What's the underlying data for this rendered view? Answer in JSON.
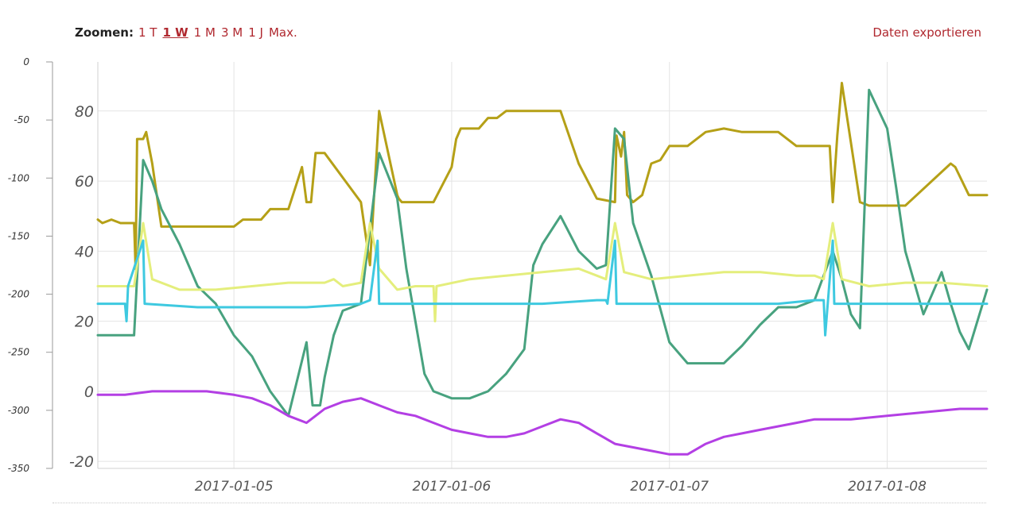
{
  "toolbar": {
    "zoom_label": "Zoomen:",
    "zoom_options": [
      {
        "label": "1 T",
        "active": false
      },
      {
        "label": "1 W",
        "active": true
      },
      {
        "label": "1 M",
        "active": false
      },
      {
        "label": "3 M",
        "active": false
      },
      {
        "label": "1 J",
        "active": false
      },
      {
        "label": "Max.",
        "active": false
      }
    ],
    "export_label": "Daten exportieren"
  },
  "chart_data": {
    "type": "line",
    "grid": "on",
    "legend": "none",
    "x_range": [
      "2017-01-04T09:00",
      "2017-01-08T11:00"
    ],
    "x_ticks": [
      "2017-01-05",
      "2017-01-06",
      "2017-01-07",
      "2017-01-08"
    ],
    "y_axis_left": {
      "ylim": [
        -350,
        0
      ],
      "ticks": [
        0,
        -50,
        -100,
        -150,
        -200,
        -250,
        -300,
        -350
      ]
    },
    "y_axis_right": {
      "ylim": [
        -22,
        94
      ],
      "ticks": [
        80,
        60,
        40,
        20,
        0,
        -20
      ]
    },
    "series": [
      {
        "color": "#b5a017",
        "axis": "right",
        "x": [
          "2017-01-04T09:00",
          "2017-01-04T09:30",
          "2017-01-04T10:30",
          "2017-01-04T11:30",
          "2017-01-04T12:00",
          "2017-01-04T13:00",
          "2017-01-04T13:10",
          "2017-01-04T13:20",
          "2017-01-04T14:00",
          "2017-01-04T14:20",
          "2017-01-04T15:00",
          "2017-01-04T16:00",
          "2017-01-04T20:00",
          "2017-01-04T21:00",
          "2017-01-04T22:00",
          "2017-01-05T00:00",
          "2017-01-05T01:00",
          "2017-01-05T03:00",
          "2017-01-05T04:00",
          "2017-01-05T05:00",
          "2017-01-05T06:00",
          "2017-01-05T07:30",
          "2017-01-05T08:00",
          "2017-01-05T08:30",
          "2017-01-05T09:00",
          "2017-01-05T10:00",
          "2017-01-05T14:00",
          "2017-01-05T15:00",
          "2017-01-05T16:00",
          "2017-01-05T18:00",
          "2017-01-05T18:10",
          "2017-01-05T18:30",
          "2017-01-05T19:00",
          "2017-01-05T19:20",
          "2017-01-05T19:40",
          "2017-01-05T20:00",
          "2017-01-05T21:00",
          "2017-01-05T22:00",
          "2017-01-06T00:00",
          "2017-01-06T00:30",
          "2017-01-06T01:00",
          "2017-01-06T02:00",
          "2017-01-06T03:00",
          "2017-01-06T04:00",
          "2017-01-06T05:00",
          "2017-01-06T06:00",
          "2017-01-06T07:00",
          "2017-01-06T08:00",
          "2017-01-06T09:00",
          "2017-01-06T10:00",
          "2017-01-06T12:00",
          "2017-01-06T14:00",
          "2017-01-06T16:00",
          "2017-01-06T18:00",
          "2017-01-06T18:10",
          "2017-01-06T18:40",
          "2017-01-06T19:00",
          "2017-01-06T19:20",
          "2017-01-06T20:00",
          "2017-01-06T21:00",
          "2017-01-06T22:00",
          "2017-01-06T23:00",
          "2017-01-07T00:00",
          "2017-01-07T01:00",
          "2017-01-07T02:00",
          "2017-01-07T04:00",
          "2017-01-07T06:00",
          "2017-01-07T08:00",
          "2017-01-07T10:00",
          "2017-01-07T12:00",
          "2017-01-07T14:00",
          "2017-01-07T16:00",
          "2017-01-07T17:00",
          "2017-01-07T17:20",
          "2017-01-07T17:40",
          "2017-01-07T18:00",
          "2017-01-07T18:30",
          "2017-01-07T19:00",
          "2017-01-07T21:00",
          "2017-01-07T22:00",
          "2017-01-07T23:00",
          "2017-01-08T00:00",
          "2017-01-08T02:00",
          "2017-01-08T07:00",
          "2017-01-08T07:30",
          "2017-01-08T09:00",
          "2017-01-08T11:00"
        ],
        "values": [
          49,
          48,
          49,
          48,
          48,
          48,
          35,
          72,
          72,
          74,
          65,
          47,
          47,
          47,
          47,
          47,
          49,
          49,
          52,
          52,
          52,
          64,
          54,
          54,
          68,
          68,
          54,
          36,
          80,
          56,
          55,
          54,
          54,
          54,
          54,
          54,
          54,
          54,
          64,
          72,
          75,
          75,
          75,
          78,
          78,
          80,
          80,
          80,
          80,
          80,
          80,
          65,
          55,
          54,
          73,
          67,
          74,
          56,
          54,
          56,
          65,
          66,
          70,
          70,
          70,
          74,
          75,
          74,
          74,
          74,
          70,
          70,
          70,
          70,
          70,
          54,
          73,
          88,
          54,
          53,
          53,
          53,
          53,
          65,
          64,
          56,
          56
        ]
      },
      {
        "color": "#48a27f",
        "axis": "right",
        "x": [
          "2017-01-04T09:00",
          "2017-01-04T13:00",
          "2017-01-04T14:00",
          "2017-01-04T15:00",
          "2017-01-04T16:00",
          "2017-01-04T18:00",
          "2017-01-04T20:00",
          "2017-01-04T22:00",
          "2017-01-05T00:00",
          "2017-01-05T02:00",
          "2017-01-05T04:00",
          "2017-01-05T06:00",
          "2017-01-05T08:00",
          "2017-01-05T08:40",
          "2017-01-05T09:30",
          "2017-01-05T10:00",
          "2017-01-05T11:00",
          "2017-01-05T12:00",
          "2017-01-05T14:00",
          "2017-01-05T16:00",
          "2017-01-05T18:00",
          "2017-01-05T19:00",
          "2017-01-05T20:00",
          "2017-01-05T21:00",
          "2017-01-05T22:00",
          "2017-01-06T00:00",
          "2017-01-06T02:00",
          "2017-01-06T04:00",
          "2017-01-06T06:00",
          "2017-01-06T08:00",
          "2017-01-06T09:00",
          "2017-01-06T10:00",
          "2017-01-06T12:00",
          "2017-01-06T14:00",
          "2017-01-06T16:00",
          "2017-01-06T17:00",
          "2017-01-06T18:00",
          "2017-01-06T19:00",
          "2017-01-06T20:00",
          "2017-01-06T22:00",
          "2017-01-07T00:00",
          "2017-01-07T02:00",
          "2017-01-07T04:00",
          "2017-01-07T06:00",
          "2017-01-07T08:00",
          "2017-01-07T10:00",
          "2017-01-07T12:00",
          "2017-01-07T14:00",
          "2017-01-07T16:00",
          "2017-01-07T18:00",
          "2017-01-07T19:00",
          "2017-01-07T20:00",
          "2017-01-07T21:00",
          "2017-01-07T22:00",
          "2017-01-08T00:00",
          "2017-01-08T01:00",
          "2017-01-08T02:00",
          "2017-01-08T04:00",
          "2017-01-08T06:00",
          "2017-01-08T07:00",
          "2017-01-08T08:00",
          "2017-01-08T09:00",
          "2017-01-08T11:00"
        ],
        "values": [
          16,
          16,
          66,
          60,
          52,
          42,
          30,
          25,
          16,
          10,
          0,
          -7,
          14,
          -4,
          -4,
          4,
          16,
          23,
          25,
          68,
          55,
          35,
          20,
          5,
          0,
          -2,
          -2,
          0,
          5,
          12,
          36,
          42,
          50,
          40,
          35,
          36,
          75,
          72,
          48,
          33,
          14,
          8,
          8,
          8,
          13,
          19,
          24,
          24,
          26,
          40,
          32,
          22,
          18,
          86,
          75,
          58,
          40,
          22,
          34,
          25,
          17,
          12,
          29
        ]
      },
      {
        "color": "#e4ee7c",
        "axis": "right",
        "x": [
          "2017-01-04T09:00",
          "2017-01-04T12:00",
          "2017-01-04T13:00",
          "2017-01-04T14:00",
          "2017-01-04T15:00",
          "2017-01-04T18:00",
          "2017-01-04T22:00",
          "2017-01-05T02:00",
          "2017-01-05T06:00",
          "2017-01-05T10:00",
          "2017-01-05T11:00",
          "2017-01-05T12:00",
          "2017-01-05T14:00",
          "2017-01-05T15:00",
          "2017-01-05T16:00",
          "2017-01-05T18:00",
          "2017-01-05T20:00",
          "2017-01-05T22:00",
          "2017-01-05T22:10",
          "2017-01-05T22:20",
          "2017-01-06T02:00",
          "2017-01-06T06:00",
          "2017-01-06T10:00",
          "2017-01-06T14:00",
          "2017-01-06T16:00",
          "2017-01-06T17:00",
          "2017-01-06T18:00",
          "2017-01-06T19:00",
          "2017-01-06T22:00",
          "2017-01-07T02:00",
          "2017-01-07T06:00",
          "2017-01-07T10:00",
          "2017-01-07T14:00",
          "2017-01-07T16:00",
          "2017-01-07T17:00",
          "2017-01-07T18:00",
          "2017-01-07T19:00",
          "2017-01-07T22:00",
          "2017-01-08T02:00",
          "2017-01-08T06:00",
          "2017-01-08T11:00"
        ],
        "values": [
          30,
          30,
          30,
          48,
          32,
          29,
          29,
          30,
          31,
          31,
          32,
          30,
          31,
          48,
          35,
          29,
          30,
          30,
          20,
          30,
          32,
          33,
          34,
          35,
          33,
          32,
          48,
          34,
          32,
          33,
          34,
          34,
          33,
          33,
          32,
          48,
          32,
          30,
          31,
          31,
          30
        ]
      },
      {
        "color": "#3ec9e0",
        "axis": "right",
        "x": [
          "2017-01-04T09:00",
          "2017-01-04T12:00",
          "2017-01-04T12:10",
          "2017-01-04T12:20",
          "2017-01-04T14:00",
          "2017-01-04T14:10",
          "2017-01-04T20:00",
          "2017-01-05T02:00",
          "2017-01-05T08:00",
          "2017-01-05T14:00",
          "2017-01-05T15:00",
          "2017-01-05T15:50",
          "2017-01-05T16:00",
          "2017-01-05T22:00",
          "2017-01-06T04:00",
          "2017-01-06T10:00",
          "2017-01-06T16:00",
          "2017-01-06T17:00",
          "2017-01-06T17:10",
          "2017-01-06T18:00",
          "2017-01-06T18:10",
          "2017-01-07T00:00",
          "2017-01-07T06:00",
          "2017-01-07T12:00",
          "2017-01-07T16:00",
          "2017-01-07T17:00",
          "2017-01-07T17:10",
          "2017-01-07T18:00",
          "2017-01-07T18:10",
          "2017-01-08T00:00",
          "2017-01-08T11:00"
        ],
        "values": [
          25,
          25,
          20,
          30,
          43,
          25,
          24,
          24,
          24,
          25,
          26,
          43,
          25,
          25,
          25,
          25,
          26,
          26,
          25,
          43,
          25,
          25,
          25,
          25,
          26,
          26,
          16,
          43,
          25,
          25,
          25
        ]
      },
      {
        "color": "#b33fe4",
        "axis": "right",
        "x": [
          "2017-01-04T09:00",
          "2017-01-04T12:00",
          "2017-01-04T15:00",
          "2017-01-04T18:00",
          "2017-01-04T21:00",
          "2017-01-05T00:00",
          "2017-01-05T02:00",
          "2017-01-05T04:00",
          "2017-01-05T06:00",
          "2017-01-05T08:00",
          "2017-01-05T09:00",
          "2017-01-05T10:00",
          "2017-01-05T12:00",
          "2017-01-05T14:00",
          "2017-01-05T16:00",
          "2017-01-05T18:00",
          "2017-01-05T20:00",
          "2017-01-05T22:00",
          "2017-01-06T00:00",
          "2017-01-06T02:00",
          "2017-01-06T04:00",
          "2017-01-06T06:00",
          "2017-01-06T08:00",
          "2017-01-06T10:00",
          "2017-01-06T12:00",
          "2017-01-06T14:00",
          "2017-01-06T16:00",
          "2017-01-06T18:00",
          "2017-01-06T20:00",
          "2017-01-06T22:00",
          "2017-01-07T00:00",
          "2017-01-07T02:00",
          "2017-01-07T04:00",
          "2017-01-07T06:00",
          "2017-01-07T08:00",
          "2017-01-07T10:00",
          "2017-01-07T12:00",
          "2017-01-07T14:00",
          "2017-01-07T16:00",
          "2017-01-07T17:00",
          "2017-01-07T18:00",
          "2017-01-07T20:00",
          "2017-01-08T00:00",
          "2017-01-08T04:00",
          "2017-01-08T08:00",
          "2017-01-08T11:00"
        ],
        "values": [
          -1,
          -1,
          0,
          0,
          0,
          -1,
          -2,
          -4,
          -7,
          -9,
          -7,
          -5,
          -3,
          -2,
          -4,
          -6,
          -7,
          -9,
          -11,
          -12,
          -13,
          -13,
          -12,
          -10,
          -8,
          -9,
          -12,
          -15,
          -16,
          -17,
          -18,
          -18,
          -15,
          -13,
          -12,
          -11,
          -10,
          -9,
          -8,
          -8,
          -8,
          -8,
          -7,
          -6,
          -5,
          -5
        ]
      }
    ]
  }
}
